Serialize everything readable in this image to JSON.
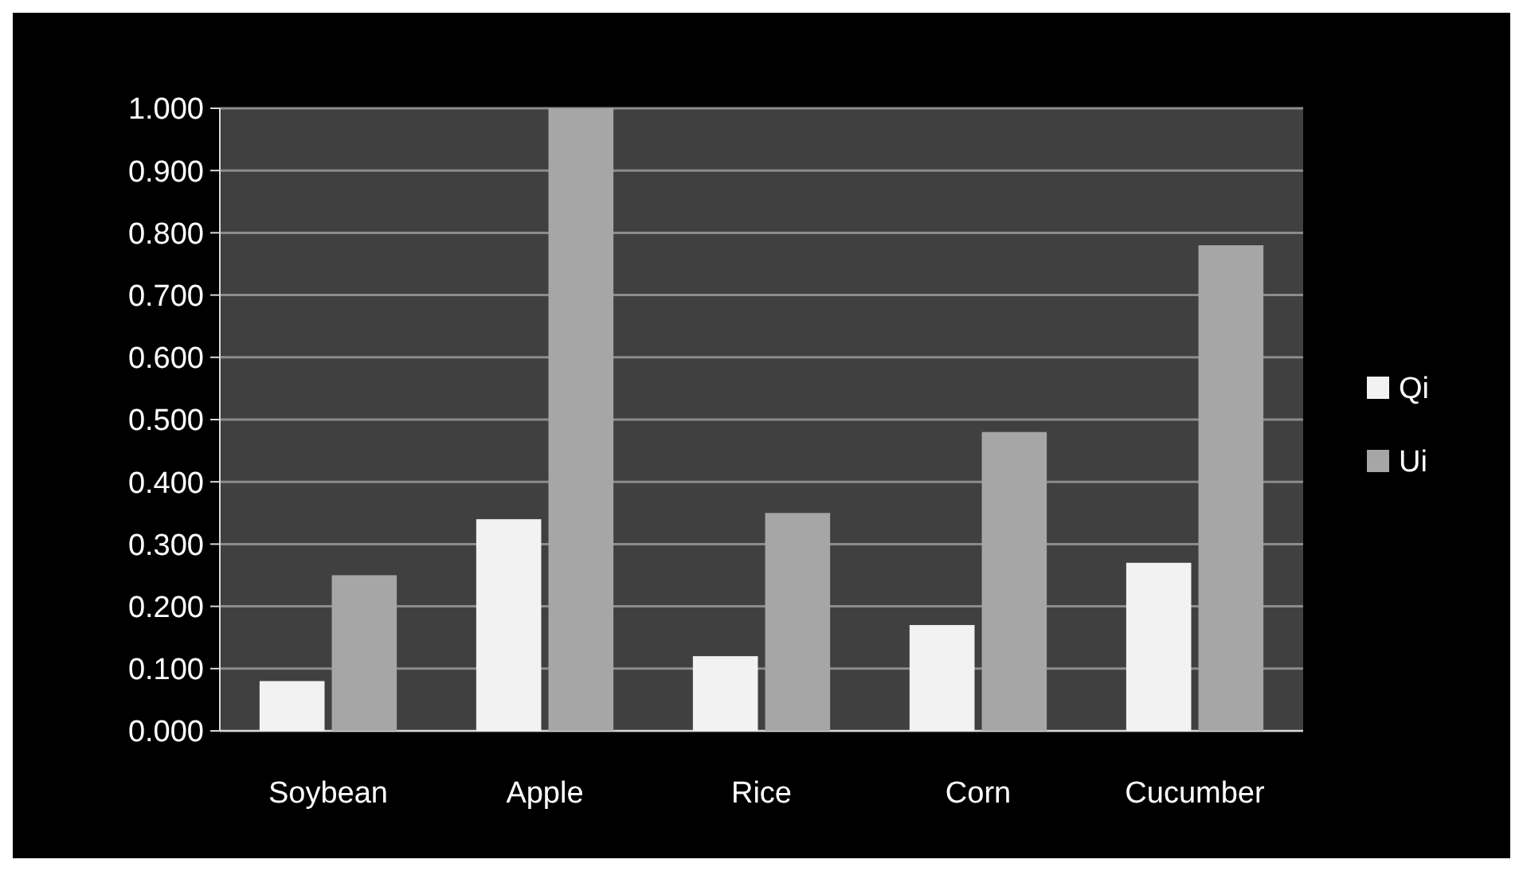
{
  "chart_data": {
    "type": "bar",
    "categories": [
      "Soybean",
      "Apple",
      "Rice",
      "Corn",
      "Cucumber"
    ],
    "series": [
      {
        "name": "Qi",
        "color": "#f2f2f2",
        "values": [
          0.08,
          0.34,
          0.12,
          0.17,
          0.27
        ]
      },
      {
        "name": "Ui",
        "color": "#a6a6a6",
        "values": [
          0.25,
          1.0,
          0.35,
          0.48,
          0.78
        ]
      }
    ],
    "ylim": [
      0,
      1
    ],
    "yticks": [
      {
        "value": 0,
        "label": "0.000"
      },
      {
        "value": 0.1,
        "label": "0.100"
      },
      {
        "value": 0.2,
        "label": "0.200"
      },
      {
        "value": 0.3,
        "label": "0.300"
      },
      {
        "value": 0.4,
        "label": "0.400"
      },
      {
        "value": 0.5,
        "label": "0.500"
      },
      {
        "value": 0.6,
        "label": "0.600"
      },
      {
        "value": 0.7,
        "label": "0.700"
      },
      {
        "value": 0.8,
        "label": "0.800"
      },
      {
        "value": 0.9,
        "label": "0.900"
      },
      {
        "value": 1,
        "label": "1.000"
      }
    ],
    "grid": "y",
    "legend": "right"
  }
}
